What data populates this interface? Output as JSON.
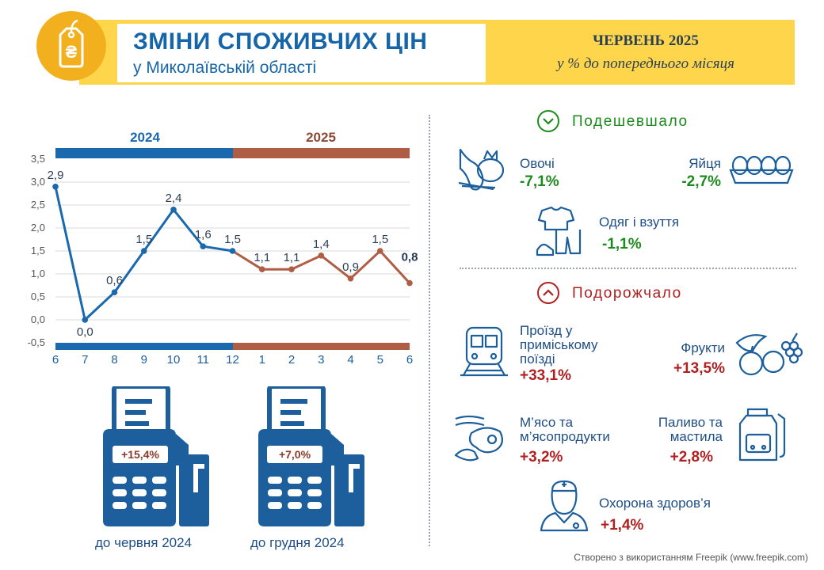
{
  "header": {
    "title": "ЗМІНИ СПОЖИВЧИХ ЦІН",
    "subtitle": "у Миколаївській області",
    "period": "ЧЕРВЕНЬ 2025",
    "unit_note": "у % до попереднього місяця",
    "currency_symbol": "₴",
    "colors": {
      "band": "#FFD64B",
      "circle": "#F2B01E",
      "title": "#1565A8"
    }
  },
  "chart_data": {
    "type": "line",
    "year_labels": [
      "2024",
      "2025"
    ],
    "categories": [
      "6",
      "7",
      "8",
      "9",
      "10",
      "11",
      "12",
      "1",
      "2",
      "3",
      "4",
      "5",
      "6"
    ],
    "values": [
      2.9,
      0.0,
      0.6,
      1.5,
      2.4,
      1.6,
      1.5,
      1.1,
      1.1,
      1.4,
      0.9,
      1.5,
      0.8
    ],
    "value_labels": [
      "2,9",
      "0,0",
      "0,6",
      "1,5",
      "2,4",
      "1,6",
      "1,5",
      "1,1",
      "1,1",
      "1,4",
      "0,9",
      "1,5",
      "0,8"
    ],
    "ylim": [
      -0.5,
      3.5
    ],
    "yticks": [
      "3,5",
      "3,0",
      "2,5",
      "2,0",
      "1,5",
      "1,0",
      "0,5",
      "0,0",
      "-0,5"
    ],
    "grid": true,
    "colors": {
      "2024": "#1A68AE",
      "2025": "#B05D45"
    }
  },
  "sections": {
    "cheaper": {
      "title": "Подешевшало",
      "items": [
        {
          "icon": "vegetables-icon",
          "label": "Овочі",
          "value": "-7,1%"
        },
        {
          "icon": "eggs-icon",
          "label": "Яйця",
          "value": "-2,7%"
        },
        {
          "icon": "clothes-icon",
          "label": "Одяг і взуття",
          "value": "-1,1%"
        }
      ]
    },
    "pricier": {
      "title": "Подорожчало",
      "items": [
        {
          "icon": "train-icon",
          "label": "Проїзд у приміському поїзді",
          "value": "+33,1%"
        },
        {
          "icon": "fruits-icon",
          "label": "Фрукти",
          "value": "+13,5%"
        },
        {
          "icon": "meat-icon",
          "label": "М’ясо та м’ясопродукти",
          "value": "+3,2%"
        },
        {
          "icon": "fuel-icon",
          "label": "Паливо та мастила",
          "value": "+2,8%"
        },
        {
          "icon": "healthcare-icon",
          "label": "Охорона здоров’я",
          "value": "+1,4%"
        }
      ]
    }
  },
  "terminals": [
    {
      "value": "+15,4%",
      "caption": "до червня 2024"
    },
    {
      "value": "+7,0%",
      "caption": "до грудня 2024"
    }
  ],
  "credit": "Створено з використанням Freepik (www.freepik.com)"
}
